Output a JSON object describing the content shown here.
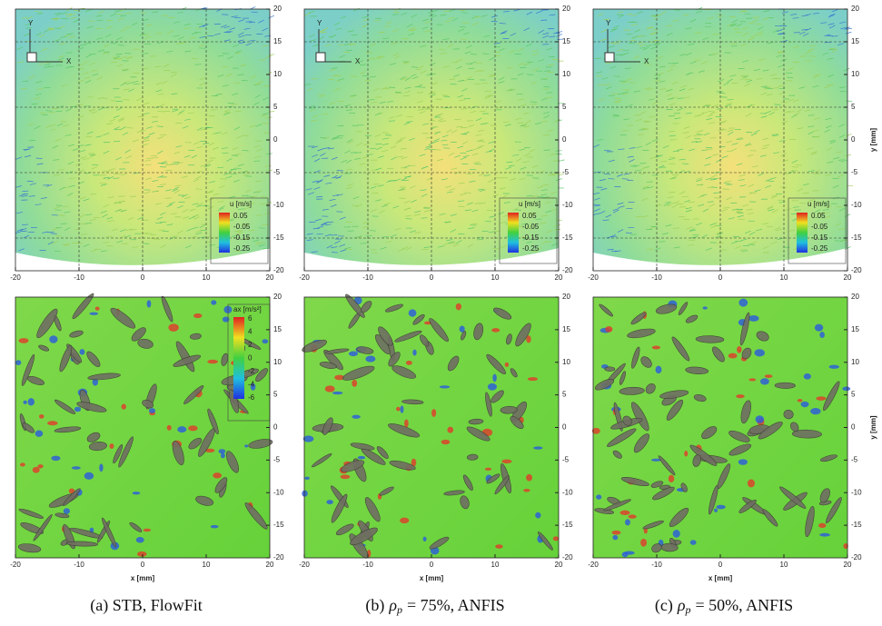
{
  "axes": {
    "xticks": [
      -20,
      -10,
      0,
      10,
      20
    ],
    "yticks": [
      20,
      15,
      10,
      5,
      0,
      -5,
      -10,
      -15,
      -20
    ],
    "x_label": "x [mm]",
    "y_label": "y [mm]"
  },
  "coordinate_axes": {
    "y": "Y",
    "x": "X"
  },
  "colorbar_u": {
    "title": "u [m/s]",
    "ticks": [
      0.05,
      -0.05,
      -0.15,
      -0.25
    ]
  },
  "colorbar_ax": {
    "title": "ax [m/s²]",
    "ticks": [
      6,
      4,
      2,
      0,
      -2,
      -4,
      -6
    ]
  },
  "captions": [
    {
      "text": "(a) STB, FlowFit"
    },
    {
      "text": "(b)",
      "symbol": "ρ",
      "subscript": "p",
      "rest": "= 75%, ANFIS"
    },
    {
      "text": "(c)",
      "symbol": "ρ",
      "subscript": "p",
      "rest": "= 50%, ANFIS"
    }
  ]
}
